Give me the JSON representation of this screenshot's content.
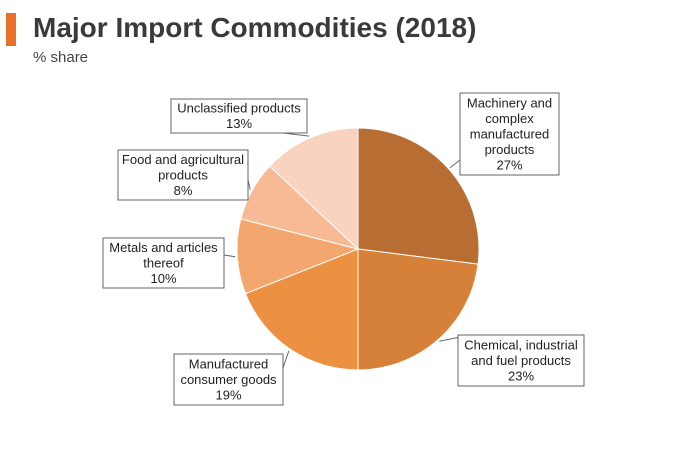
{
  "header": {
    "title": "Major Import Commodities (2018)",
    "subtitle": "% share"
  },
  "colors": {
    "accent": "#e8712a"
  },
  "chart_data": {
    "type": "pie",
    "title": "Major Import Commodities (2018)",
    "subtitle": "% share",
    "legend": "none",
    "slices": [
      {
        "label_lines": [
          "Machinery and",
          "complex",
          "manufactured",
          "products"
        ],
        "value": 27,
        "value_label": "27%",
        "color": "#b86d33"
      },
      {
        "label_lines": [
          "Chemical, industrial",
          "and fuel products"
        ],
        "value": 23,
        "value_label": "23%",
        "color": "#d68139"
      },
      {
        "label_lines": [
          "Manufactured",
          "consumer goods"
        ],
        "value": 19,
        "value_label": "19%",
        "color": "#ec9042"
      },
      {
        "label_lines": [
          "Metals and articles",
          "thereof"
        ],
        "value": 10,
        "value_label": "10%",
        "color": "#f4a66f"
      },
      {
        "label_lines": [
          "Food and agricultural",
          "products"
        ],
        "value": 8,
        "value_label": "8%",
        "color": "#f7ba94"
      },
      {
        "label_lines": [
          "Unclassified products"
        ],
        "value": 13,
        "value_label": "13%",
        "color": "#f9d3bf"
      }
    ]
  }
}
